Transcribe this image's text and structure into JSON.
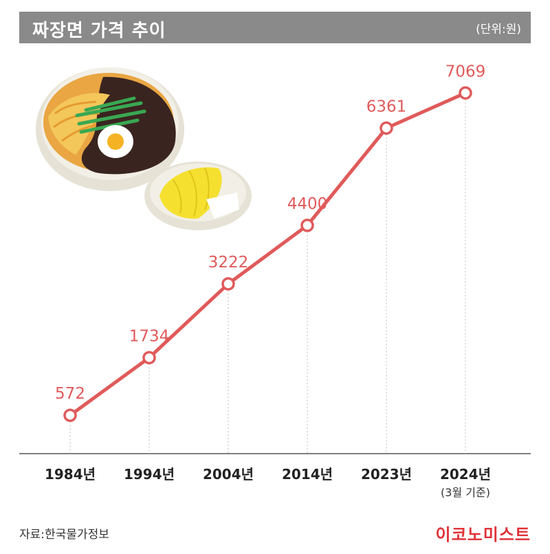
{
  "header": {
    "title": "짜장면 가격 추이",
    "unit": "(단위:원)"
  },
  "chart_data": {
    "type": "line",
    "categories": [
      "1984년",
      "1994년",
      "2004년",
      "2014년",
      "2023년",
      "2024년"
    ],
    "category_notes": [
      "",
      "",
      "",
      "",
      "",
      "(3월 기준)"
    ],
    "values": [
      572,
      1734,
      3222,
      4400,
      6361,
      7069
    ],
    "value_labels": [
      "572",
      "1734",
      "3222",
      "4400",
      "6361",
      "7069"
    ],
    "title": "짜장면 가격 추이",
    "xlabel": "",
    "ylabel": "",
    "unit_label": "(단위:원)",
    "ylim": [
      0,
      7500
    ],
    "grid": false,
    "line_color": "#e05a5a",
    "label_color": "#e05a5a"
  },
  "illustration": {
    "icon": "jajangmyeon-bowl-illustration"
  },
  "footer": {
    "source": "자료:한국물가정보",
    "brand": "이코노미스트"
  }
}
